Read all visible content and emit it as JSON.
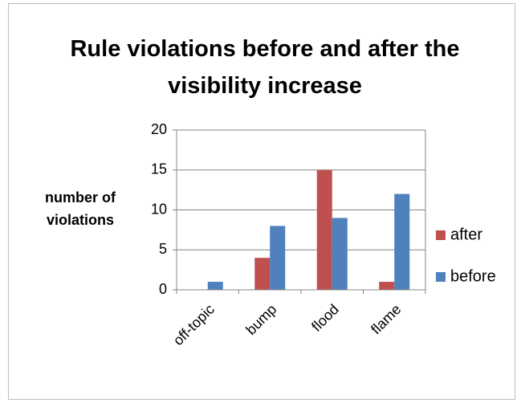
{
  "chart_data": {
    "type": "bar",
    "title": "Rule violations before and after the visibility increase",
    "y_label": "number of violations",
    "categories": [
      "off-topic",
      "bump",
      "flood",
      "flame"
    ],
    "series": [
      {
        "name": "after",
        "color": "#c0504d",
        "values": [
          0,
          4,
          15,
          1
        ]
      },
      {
        "name": "before",
        "color": "#4f81bd",
        "values": [
          1,
          8,
          9,
          12
        ]
      }
    ],
    "ylim": [
      0,
      20
    ],
    "yticks": [
      0,
      5,
      10,
      15,
      20
    ],
    "grid": true,
    "legend": "right"
  }
}
